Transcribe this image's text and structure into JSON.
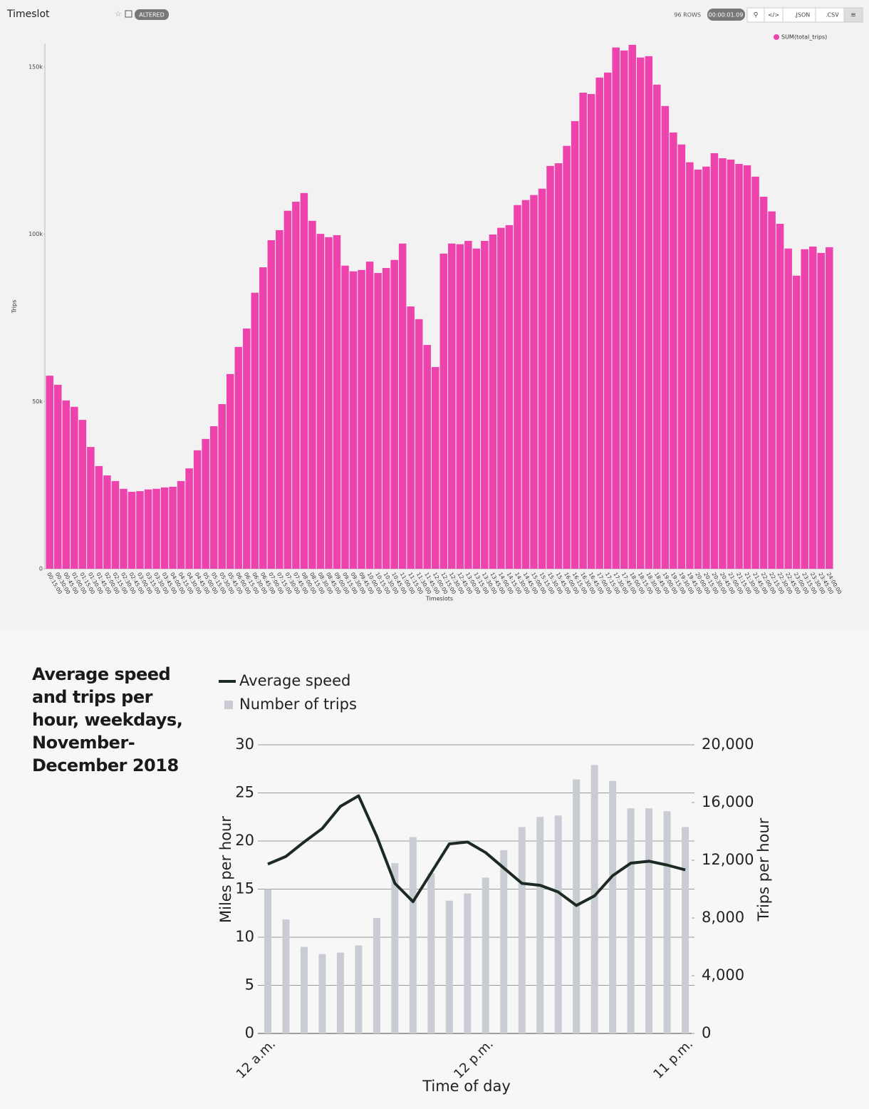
{
  "header": {
    "title": "Timeslot",
    "badge": "ALTERED",
    "rows": "96 ROWS",
    "timer": "00:00:01.09",
    "json": ".JSON",
    "csv": ".CSV"
  },
  "chart_data": [
    {
      "type": "bar",
      "legend_position": "top-right",
      "ylabel": "Trips",
      "xlabel": "Timeslots",
      "categories": [
        "00:15:00",
        "00:30:00",
        "00:45:00",
        "01:00:00",
        "01:15:00",
        "01:30:00",
        "01:45:00",
        "02:00:00",
        "02:15:00",
        "02:30:00",
        "02:45:00",
        "03:00:00",
        "03:15:00",
        "03:30:00",
        "03:45:00",
        "04:00:00",
        "04:15:00",
        "04:30:00",
        "04:45:00",
        "05:00:00",
        "05:15:00",
        "05:30:00",
        "05:45:00",
        "06:00:00",
        "06:15:00",
        "06:30:00",
        "06:45:00",
        "07:00:00",
        "07:15:00",
        "07:30:00",
        "07:45:00",
        "08:00:00",
        "08:15:00",
        "08:30:00",
        "08:45:00",
        "09:00:00",
        "09:15:00",
        "09:30:00",
        "09:45:00",
        "10:00:00",
        "10:15:00",
        "10:30:00",
        "10:45:00",
        "11:00:00",
        "11:15:00",
        "11:30:00",
        "11:45:00",
        "12:00:00",
        "12:15:00",
        "12:30:00",
        "12:45:00",
        "13:00:00",
        "13:15:00",
        "13:30:00",
        "13:45:00",
        "14:00:00",
        "14:15:00",
        "14:30:00",
        "14:45:00",
        "15:00:00",
        "15:15:00",
        "15:30:00",
        "15:45:00",
        "16:00:00",
        "16:15:00",
        "16:30:00",
        "16:45:00",
        "17:00:00",
        "17:15:00",
        "17:30:00",
        "17:45:00",
        "18:00:00",
        "18:15:00",
        "18:30:00",
        "18:45:00",
        "19:00:00",
        "19:15:00",
        "19:30:00",
        "19:45:00",
        "20:00:00",
        "20:15:00",
        "20:30:00",
        "20:45:00",
        "21:00:00",
        "21:15:00",
        "21:30:00",
        "21:45:00",
        "22:00:00",
        "22:15:00",
        "22:30:00",
        "22:45:00",
        "23:00:00",
        "23:15:00",
        "23:30:00",
        "23:45:00",
        "24:00:00"
      ],
      "series": [
        {
          "name": "SUM(total_trips)",
          "color": "#ee42ad",
          "values": [
            57700,
            55000,
            50300,
            48400,
            44500,
            36400,
            30700,
            27900,
            26200,
            23900,
            23000,
            23200,
            23700,
            23900,
            24300,
            24500,
            26200,
            30000,
            35400,
            38800,
            42600,
            49200,
            58200,
            66300,
            71800,
            82500,
            90100,
            98200,
            101200,
            107000,
            109700,
            112300,
            104000,
            100100,
            99100,
            99700,
            90600,
            88900,
            89300,
            91800,
            88400,
            89900,
            92300,
            97200,
            78400,
            74600,
            66900,
            60300,
            94200,
            97200,
            97000,
            98000,
            95700,
            98000,
            99900,
            101900,
            102700,
            108700,
            110200,
            111700,
            113600,
            120400,
            121200,
            126400,
            133800,
            142300,
            141900,
            146800,
            148300,
            155800,
            154900,
            156600,
            152800,
            153200,
            144700,
            138300,
            130400,
            126800,
            121500,
            119300,
            120200,
            124200,
            122700,
            122300,
            121000,
            120600,
            117200,
            111200,
            106800,
            103100,
            95700,
            87600,
            95500,
            96300,
            94400,
            96100
          ]
        }
      ],
      "ylim": [
        0,
        157000
      ],
      "yticks": [
        0,
        {
          "value": 50000,
          "label": "50k"
        },
        {
          "value": 100000,
          "label": "100k"
        },
        {
          "value": 150000,
          "label": "150k"
        }
      ],
      "grid": false
    },
    {
      "type": "bar-line",
      "title": "Average speed and trips per hour, weekdays, November-December 2018",
      "xlabel": "Time of day",
      "ylabel": "Miles per hour",
      "y2label": "Trips per hour",
      "categories": [
        "12 a.m.",
        null,
        null,
        null,
        null,
        null,
        null,
        null,
        null,
        null,
        null,
        null,
        "12 p.m.",
        null,
        null,
        null,
        null,
        null,
        null,
        null,
        null,
        null,
        null,
        "11 p.m."
      ],
      "series": [
        {
          "name": "Average speed",
          "kind": "line",
          "axis": "y",
          "color": "#1b2b24",
          "values": [
            17.6,
            18.4,
            19.9,
            21.3,
            23.6,
            24.7,
            20.5,
            15.6,
            13.7,
            16.7,
            19.7,
            19.9,
            18.8,
            17.2,
            15.6,
            15.4,
            14.7,
            13.3,
            14.3,
            16.4,
            17.7,
            17.9,
            17.5,
            17.0
          ]
        },
        {
          "name": "Number of trips",
          "kind": "bar",
          "axis": "y2",
          "color": "#c9cdd3",
          "values": [
            10000,
            7900,
            6000,
            5500,
            5600,
            6100,
            8000,
            11800,
            13600,
            11100,
            9200,
            9700,
            10800,
            12700,
            14300,
            15000,
            15100,
            17600,
            18600,
            17500,
            15600,
            15600,
            15400,
            14300
          ]
        }
      ],
      "ylim": [
        0,
        30
      ],
      "yticks": [
        0,
        5,
        10,
        15,
        20,
        25,
        30
      ],
      "y2lim": [
        0,
        20000
      ],
      "y2ticks": [
        0,
        {
          "value": 4000,
          "label": "4,000"
        },
        {
          "value": 8000,
          "label": "8,000"
        },
        {
          "value": 12000,
          "label": "12,000"
        },
        {
          "value": 16000,
          "label": "16,000"
        },
        {
          "value": 20000,
          "label": "20,000"
        }
      ],
      "grid": true
    }
  ]
}
